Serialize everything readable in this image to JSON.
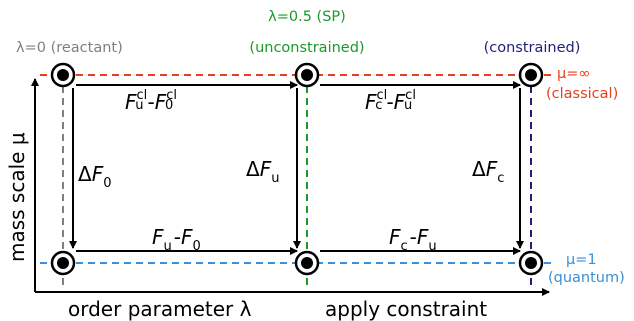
{
  "colors": {
    "reactant": "#808080",
    "sp": "#1a9a2a",
    "constrained": "#1f1f7a",
    "classical": "#e8401c",
    "quantum": "#3a8fd8",
    "arrow": "#000000"
  },
  "labels": {
    "reactant": "λ=0 (reactant)",
    "sp_line1": "λ=0.5 (SP)",
    "sp_line2": "(unconstrained)",
    "constrained": "(constrained)",
    "classical_line1": "μ=∞",
    "classical_line2": "(classical)",
    "quantum_line1": "μ=1",
    "quantum_line2": "(quantum)"
  },
  "axes": {
    "y_label": "mass scale μ",
    "x_label_left": "order parameter λ",
    "x_label_right": "apply constraint"
  },
  "terms": {
    "F": "F",
    "Delta": "Δ",
    "minus": "-",
    "sub_u": "u",
    "sub_0": "0",
    "sub_c": "c",
    "sup_cl": "cl"
  }
}
